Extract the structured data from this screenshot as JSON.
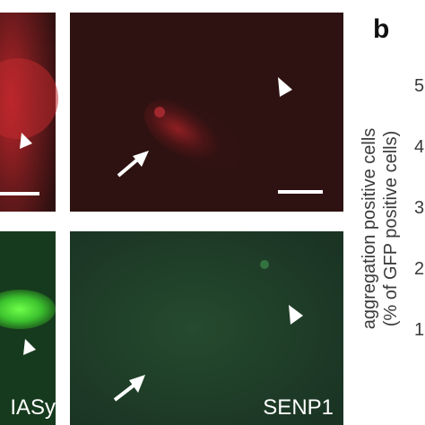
{
  "figure": {
    "panel_label": "b",
    "images": {
      "bottom_left_label": "IASy",
      "bottom_right_label": "SENP1"
    },
    "y_axis": {
      "label_line1": "aggregation  positive cells",
      "label_line2": "(% of GFP positive cells)",
      "ticks": [
        "5",
        "4",
        "3",
        "2",
        "1"
      ]
    }
  }
}
